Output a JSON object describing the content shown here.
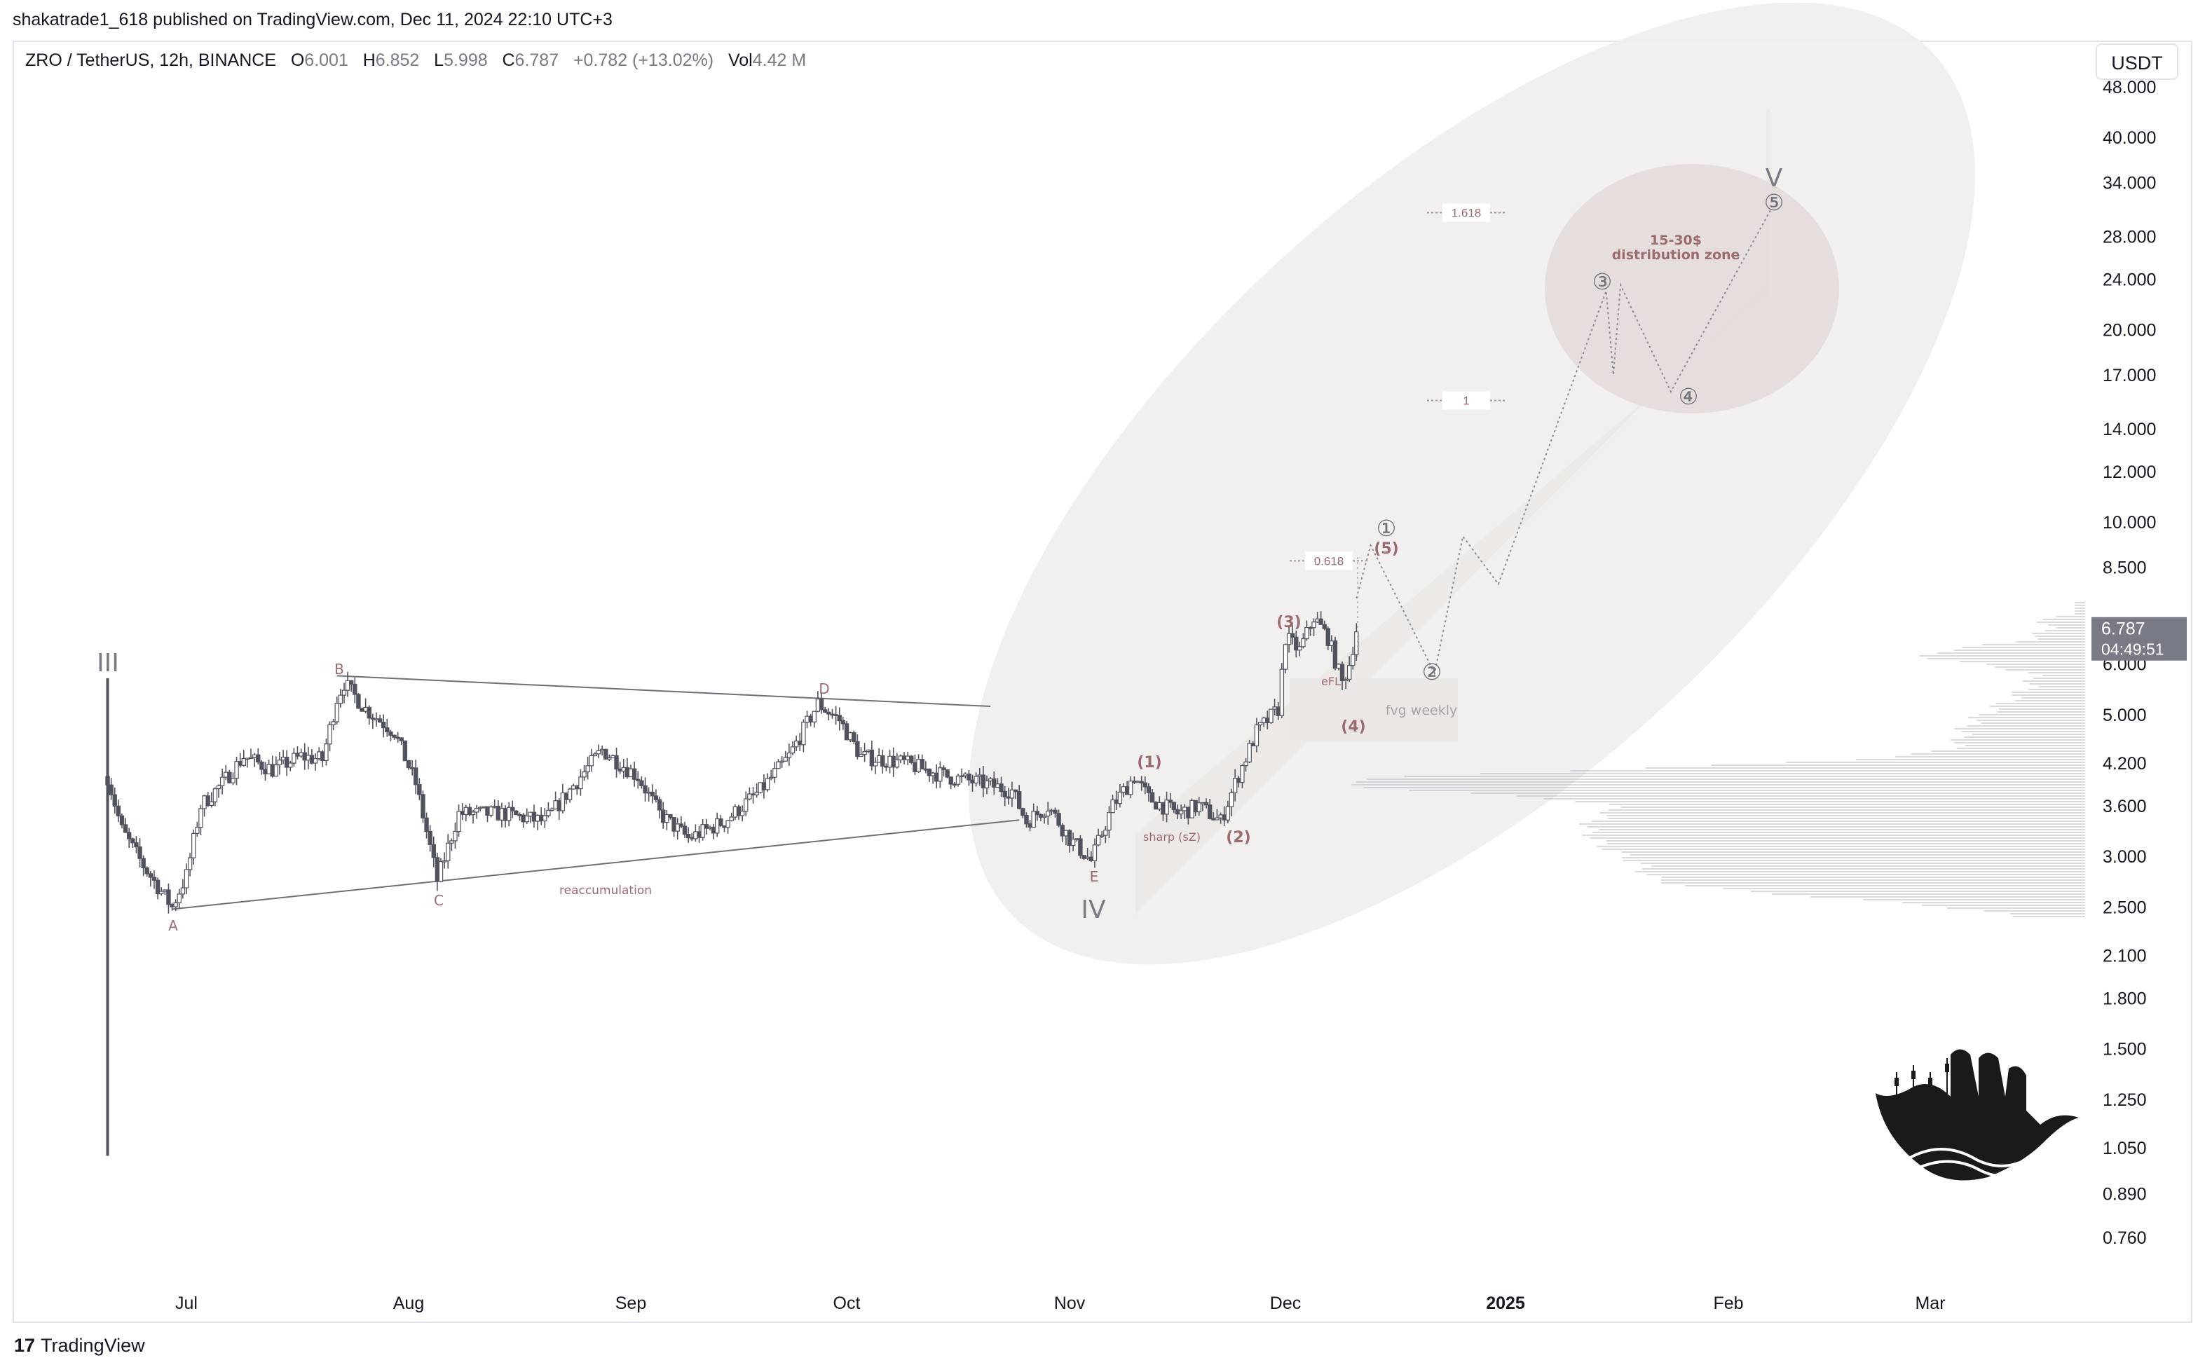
{
  "publisher_line": "shakatrade1_618 published on TradingView.com, Dec 11, 2024 22:10 UTC+3",
  "legend": {
    "symbol": "ZRO / TetherUS, 12h, BINANCE",
    "o_label": "O",
    "o": "6.001",
    "h_label": "H",
    "h": "6.852",
    "l_label": "L",
    "l": "5.998",
    "c_label": "C",
    "c": "6.787",
    "change": "+0.782 (+13.02%)",
    "vol_label": "Vol",
    "vol": "4.42 M"
  },
  "currency": "USDT",
  "footer_brand": "TradingView",
  "colors": {
    "candle": "#50535e",
    "wave_label": "#9c6b70",
    "axis_text": "#131722",
    "price_badge": "#787b86",
    "zone_fill": "#e9e4e1",
    "vp": "#b2b5be"
  },
  "chart_data": {
    "type": "candlestick",
    "y_scale": "log",
    "ylim": [
      0.67,
      52
    ],
    "y_ticks": [
      "48.000",
      "40.000",
      "34.000",
      "28.000",
      "24.000",
      "20.000",
      "17.000",
      "14.000",
      "12.000",
      "10.000",
      "8.500",
      "6.000",
      "5.000",
      "4.200",
      "3.600",
      "3.000",
      "2.500",
      "2.100",
      "1.800",
      "1.500",
      "1.250",
      "1.050",
      "0.890",
      "0.760"
    ],
    "x_ticks": [
      {
        "label": "Jul",
        "date": "2024-07-01"
      },
      {
        "label": "Aug",
        "date": "2024-08-01"
      },
      {
        "label": "Sep",
        "date": "2024-09-01"
      },
      {
        "label": "Oct",
        "date": "2024-10-01"
      },
      {
        "label": "Nov",
        "date": "2024-11-01"
      },
      {
        "label": "Dec",
        "date": "2024-12-01"
      },
      {
        "label": "2025",
        "date": "2025-01-01"
      },
      {
        "label": "Feb",
        "date": "2025-02-01"
      },
      {
        "label": "Mar",
        "date": "2025-03-01"
      }
    ],
    "price_series": [
      [
        "2024-06-20",
        4.0
      ],
      [
        "2024-06-22",
        3.3
      ],
      [
        "2024-06-25",
        2.9
      ],
      [
        "2024-06-29",
        2.5
      ],
      [
        "2024-07-01",
        2.8
      ],
      [
        "2024-07-03",
        3.6
      ],
      [
        "2024-07-06",
        3.9
      ],
      [
        "2024-07-09",
        4.3
      ],
      [
        "2024-07-13",
        4.1
      ],
      [
        "2024-07-17",
        4.3
      ],
      [
        "2024-07-20",
        4.25
      ],
      [
        "2024-07-22",
        5.3
      ],
      [
        "2024-07-23",
        5.6
      ],
      [
        "2024-07-26",
        5.1
      ],
      [
        "2024-07-30",
        4.7
      ],
      [
        "2024-08-02",
        3.9
      ],
      [
        "2024-08-04",
        3.1
      ],
      [
        "2024-08-05",
        2.75
      ],
      [
        "2024-08-08",
        3.5
      ],
      [
        "2024-08-14",
        3.5
      ],
      [
        "2024-08-20",
        3.4
      ],
      [
        "2024-08-25",
        4.0
      ],
      [
        "2024-08-28",
        4.4
      ],
      [
        "2024-09-02",
        4.0
      ],
      [
        "2024-09-05",
        3.5
      ],
      [
        "2024-09-09",
        3.2
      ],
      [
        "2024-09-14",
        3.4
      ],
      [
        "2024-09-19",
        3.8
      ],
      [
        "2024-09-23",
        4.3
      ],
      [
        "2024-09-27",
        5.2
      ],
      [
        "2024-09-30",
        4.9
      ],
      [
        "2024-10-03",
        4.3
      ],
      [
        "2024-10-09",
        4.2
      ],
      [
        "2024-10-15",
        4.0
      ],
      [
        "2024-10-20",
        3.9
      ],
      [
        "2024-10-24",
        3.8
      ],
      [
        "2024-10-26",
        3.4
      ],
      [
        "2024-10-29",
        3.6
      ],
      [
        "2024-11-01",
        3.2
      ],
      [
        "2024-11-04",
        2.95
      ],
      [
        "2024-11-07",
        3.6
      ],
      [
        "2024-11-10",
        4.0
      ],
      [
        "2024-11-12",
        3.7
      ],
      [
        "2024-11-16",
        3.5
      ],
      [
        "2024-11-19",
        3.6
      ],
      [
        "2024-11-22",
        3.4
      ],
      [
        "2024-11-24",
        3.9
      ],
      [
        "2024-11-27",
        4.7
      ],
      [
        "2024-11-30",
        5.1
      ],
      [
        "2024-12-01",
        6.6
      ],
      [
        "2024-12-03",
        6.3
      ],
      [
        "2024-12-05",
        7.1
      ],
      [
        "2024-12-07",
        6.6
      ],
      [
        "2024-12-09",
        5.6
      ],
      [
        "2024-12-10",
        6.0
      ],
      [
        "2024-12-11",
        6.787
      ]
    ],
    "last_price": "6.787",
    "countdown": "04:49:51",
    "triangle_labels": [
      "A",
      "B",
      "C",
      "D",
      "E"
    ],
    "triangle_note": "reaccumulation",
    "big_labels": [
      "III",
      "IV",
      "V"
    ],
    "sub_waves": [
      "(1)",
      "(2)",
      "(3)",
      "(4)",
      "(5)"
    ],
    "sub_wave_notes": [
      "sharp (sZ)",
      "eFL"
    ],
    "circled_waves": [
      "①",
      "②",
      "③",
      "④",
      "⑤"
    ],
    "fib_levels": [
      {
        "label": "0.618",
        "price": 8.7
      },
      {
        "label": "1",
        "price": 15.5
      },
      {
        "label": "1.618",
        "price": 30.5
      }
    ],
    "fvg_label": "fvg weekly",
    "zone_label_1": "15-30$",
    "zone_label_2": "distribution zone",
    "projection_path": [
      [
        "2024-12-11",
        7.6
      ],
      [
        "2024-12-13",
        9.2
      ],
      [
        "2024-12-16",
        7.9
      ],
      [
        "2024-12-22",
        5.8
      ],
      [
        "2024-12-26",
        9.5
      ],
      [
        "2024-12-31",
        8.0
      ],
      [
        "2025-01-15",
        23.0
      ],
      [
        "2025-01-16",
        17.0
      ],
      [
        "2025-01-17",
        23.5
      ],
      [
        "2025-01-24",
        16.0
      ],
      [
        "2025-02-07",
        31.0
      ]
    ]
  }
}
